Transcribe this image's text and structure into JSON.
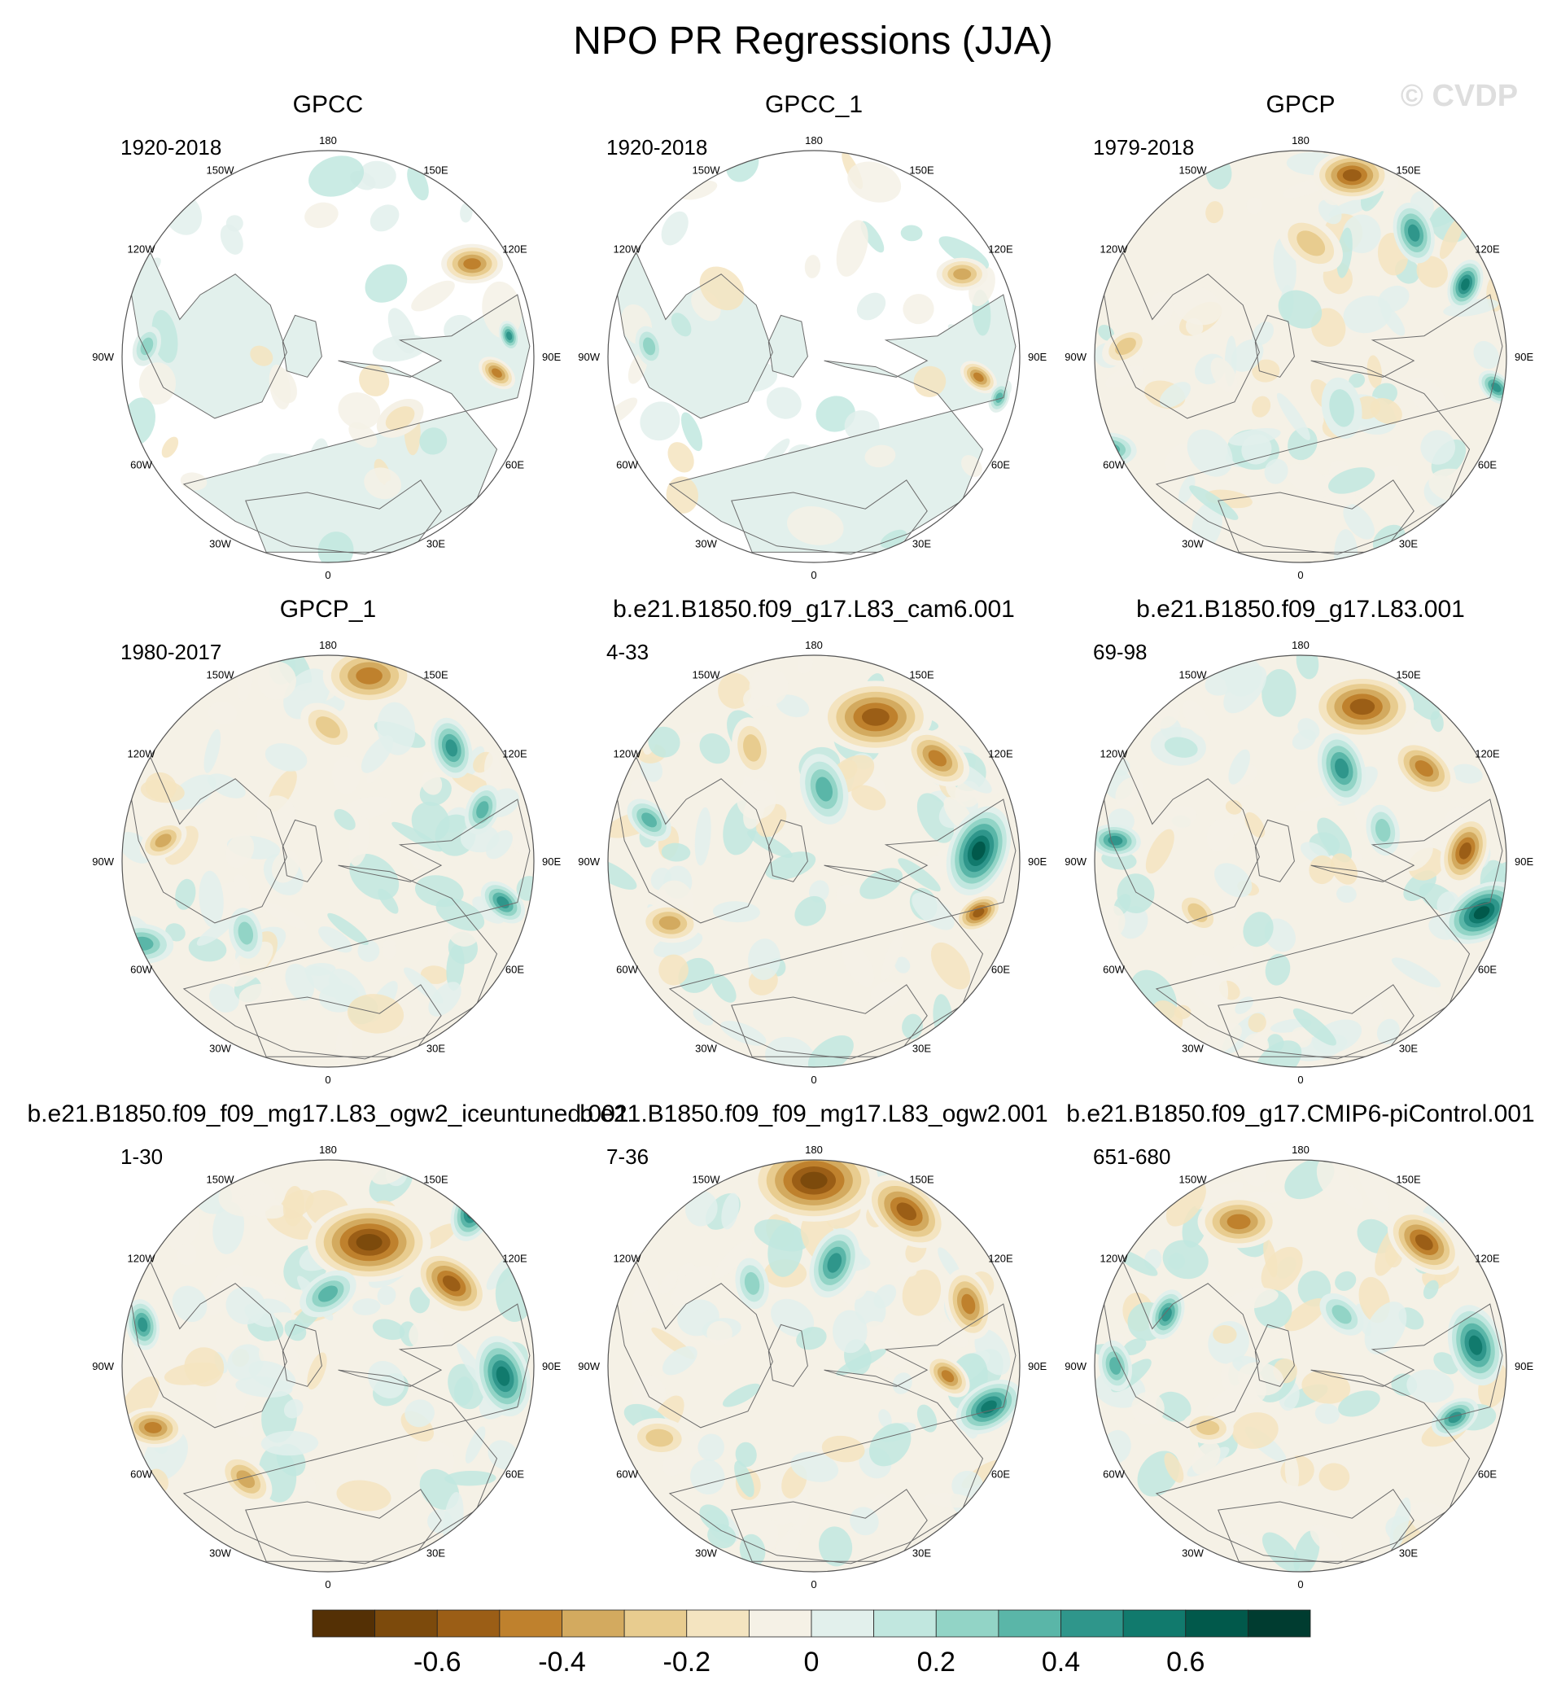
{
  "chart_data": {
    "type": "heatmap",
    "title": "NPO PR Regressions (JJA)",
    "watermark": "© CVDP",
    "projection": "north polar stereographic",
    "longitude_labels": [
      "180",
      "150E",
      "120E",
      "90E",
      "60E",
      "30E",
      "0",
      "30W",
      "60W",
      "90W",
      "120W",
      "150W"
    ],
    "colorbar": {
      "ticks": [
        "-0.6",
        "-0.4",
        "-0.2",
        "0",
        "0.2",
        "0.4",
        "0.6"
      ],
      "tick_values": [
        -0.6,
        -0.4,
        -0.2,
        0,
        0.2,
        0.4,
        0.6
      ],
      "levels": [
        -0.7,
        -0.6,
        -0.5,
        -0.4,
        -0.3,
        -0.2,
        -0.1,
        0,
        0.1,
        0.2,
        0.3,
        0.4,
        0.5,
        0.6,
        0.7
      ],
      "colors": [
        "#543005",
        "#7c4a0c",
        "#9b5e16",
        "#bf812d",
        "#d3aa5f",
        "#e8cc8f",
        "#f4e4c0",
        "#f5f1e6",
        "#e2f0ec",
        "#c1e7df",
        "#92d4c6",
        "#5ab6a8",
        "#2f968b",
        "#117a6d",
        "#01594b",
        "#003c30"
      ]
    },
    "panels": [
      {
        "name": "GPCC",
        "years": "1920-2018",
        "coverage": "land"
      },
      {
        "name": "GPCC_1",
        "years": "1920-2018",
        "coverage": "land"
      },
      {
        "name": "GPCP",
        "years": "1979-2018",
        "coverage": "full"
      },
      {
        "name": "GPCP_1",
        "years": "1980-2017",
        "coverage": "full"
      },
      {
        "name": "b.e21.B1850.f09_g17.L83_cam6.001",
        "years": "4-33",
        "coverage": "full"
      },
      {
        "name": "b.e21.B1850.f09_g17.L83.001",
        "years": "69-98",
        "coverage": "full"
      },
      {
        "name": "b.e21.B1850.f09_f09_mg17.L83_ogw2_iceuntuned.001",
        "years": "1-30",
        "coverage": "full"
      },
      {
        "name": "b.e21.B1850.f09_f09_mg17.L83_ogw2.001",
        "years": "7-36",
        "coverage": "full"
      },
      {
        "name": "b.e21.B1850.f09_g17.CMIP6-piControl.001",
        "years": "651-680",
        "coverage": "full"
      }
    ]
  }
}
